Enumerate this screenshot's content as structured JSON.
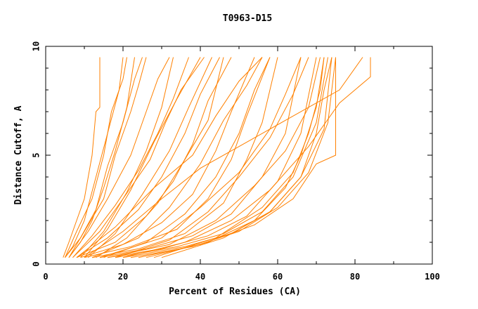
{
  "chart_data": {
    "type": "line",
    "title": "T0963-D15",
    "xlabel": "Percent of Residues (CA)",
    "ylabel": "Distance Cutoff, A",
    "xlim": [
      0,
      100
    ],
    "ylim": [
      0,
      10
    ],
    "x_ticks": [
      "0",
      "20",
      "40",
      "60",
      "80",
      "100"
    ],
    "y_ticks": [
      "0",
      "5",
      "10"
    ],
    "line_color": "#ff8000",
    "series_shape": "step-like cumulative curves, one per model (~70 models)",
    "series": [
      {
        "points": [
          [
            4.5,
            0.3
          ],
          [
            6,
            1
          ],
          [
            8,
            2
          ],
          [
            10,
            3
          ],
          [
            12,
            5
          ],
          [
            13,
            7
          ],
          [
            14,
            7.2
          ],
          [
            14,
            9.5
          ]
        ]
      },
      {
        "points": [
          [
            5,
            0.3
          ],
          [
            8,
            1.5
          ],
          [
            12,
            3
          ],
          [
            15,
            5
          ],
          [
            17,
            7
          ],
          [
            20,
            8.5
          ],
          [
            21,
            9.5
          ]
        ]
      },
      {
        "points": [
          [
            5,
            0.3
          ],
          [
            9,
            1.2
          ],
          [
            13,
            2.5
          ],
          [
            16,
            4.5
          ],
          [
            20,
            6.5
          ],
          [
            23,
            8.5
          ],
          [
            25,
            9.5
          ]
        ]
      },
      {
        "points": [
          [
            6,
            0.3
          ],
          [
            10,
            1.5
          ],
          [
            15,
            3
          ],
          [
            18,
            5
          ],
          [
            22,
            7
          ],
          [
            24,
            8.2
          ],
          [
            26,
            9.5
          ]
        ]
      },
      {
        "points": [
          [
            6,
            0.3
          ],
          [
            11,
            1.5
          ],
          [
            16,
            3
          ],
          [
            22,
            5
          ],
          [
            26,
            7
          ],
          [
            29,
            8.5
          ],
          [
            32,
            9.5
          ]
        ]
      },
      {
        "points": [
          [
            7,
            0.3
          ],
          [
            12,
            1.3
          ],
          [
            18,
            2.7
          ],
          [
            24,
            4.3
          ],
          [
            29,
            6
          ],
          [
            33,
            7.6
          ],
          [
            37,
            9.5
          ]
        ]
      },
      {
        "points": [
          [
            7,
            0.3
          ],
          [
            14,
            1.5
          ],
          [
            20,
            3
          ],
          [
            27,
            4.8
          ],
          [
            31,
            6.5
          ],
          [
            35,
            8
          ],
          [
            41,
            9.5
          ]
        ]
      },
      {
        "points": [
          [
            8,
            0.3
          ],
          [
            16,
            1.2
          ],
          [
            24,
            2.5
          ],
          [
            30,
            4
          ],
          [
            36,
            6
          ],
          [
            40,
            7.8
          ],
          [
            45,
            9.5
          ]
        ]
      },
      {
        "points": [
          [
            8,
            0.3
          ],
          [
            18,
            1
          ],
          [
            26,
            2.2
          ],
          [
            33,
            3.8
          ],
          [
            38,
            5.5
          ],
          [
            42,
            7.5
          ],
          [
            48,
            9.5
          ]
        ]
      },
      {
        "points": [
          [
            9,
            0.3
          ],
          [
            20,
            0.9
          ],
          [
            30,
            1.9
          ],
          [
            38,
            3.2
          ],
          [
            44,
            5.2
          ],
          [
            48,
            7
          ],
          [
            54,
            9.5
          ]
        ]
      },
      {
        "points": [
          [
            10,
            0.3
          ],
          [
            22,
            0.8
          ],
          [
            34,
            1.6
          ],
          [
            42,
            3
          ],
          [
            48,
            4.8
          ],
          [
            52,
            6.8
          ],
          [
            58,
            9.5
          ]
        ]
      },
      {
        "points": [
          [
            12,
            0.3
          ],
          [
            24,
            0.7
          ],
          [
            36,
            1.4
          ],
          [
            46,
            2.8
          ],
          [
            52,
            4.8
          ],
          [
            56,
            6.5
          ],
          [
            60,
            9.5
          ]
        ]
      },
      {
        "points": [
          [
            14,
            0.3
          ],
          [
            26,
            0.7
          ],
          [
            38,
            1.3
          ],
          [
            48,
            2.3
          ],
          [
            56,
            4
          ],
          [
            62,
            6
          ],
          [
            66,
            9.5
          ]
        ]
      },
      {
        "points": [
          [
            16,
            0.3
          ],
          [
            30,
            0.7
          ],
          [
            42,
            1.3
          ],
          [
            52,
            2.2
          ],
          [
            60,
            3.8
          ],
          [
            66,
            6
          ],
          [
            70,
            9.5
          ]
        ]
      },
      {
        "points": [
          [
            18,
            0.3
          ],
          [
            34,
            0.8
          ],
          [
            46,
            1.4
          ],
          [
            56,
            2.4
          ],
          [
            64,
            4
          ],
          [
            70,
            6.5
          ],
          [
            73,
            9.5
          ]
        ]
      },
      {
        "points": [
          [
            20,
            0.3
          ],
          [
            36,
            0.8
          ],
          [
            48,
            1.4
          ],
          [
            58,
            2.4
          ],
          [
            66,
            4
          ],
          [
            72,
            6.2
          ],
          [
            74,
            9.5
          ]
        ]
      },
      {
        "points": [
          [
            22,
            0.3
          ],
          [
            38,
            0.8
          ],
          [
            50,
            1.5
          ],
          [
            60,
            2.6
          ],
          [
            68,
            4.2
          ],
          [
            73,
            6.5
          ],
          [
            75,
            9.5
          ]
        ]
      },
      {
        "points": [
          [
            24,
            0.3
          ],
          [
            40,
            0.9
          ],
          [
            54,
            1.8
          ],
          [
            64,
            3
          ],
          [
            70,
            4.6
          ],
          [
            75,
            5
          ],
          [
            75,
            9.5
          ]
        ]
      },
      {
        "points": [
          [
            20,
            0.3
          ],
          [
            36,
            1
          ],
          [
            48,
            2
          ],
          [
            58,
            3.4
          ],
          [
            68,
            5.4
          ],
          [
            76,
            7.4
          ],
          [
            84,
            8.6
          ],
          [
            84,
            9.5
          ]
        ]
      },
      {
        "points": [
          [
            10,
            0.3
          ],
          [
            20,
            1.5
          ],
          [
            30,
            3
          ],
          [
            40,
            4.4
          ],
          [
            52,
            5.6
          ],
          [
            64,
            6.8
          ],
          [
            76,
            8
          ],
          [
            82,
            9.5
          ]
        ]
      },
      {
        "points": [
          [
            8,
            0.3
          ],
          [
            18,
            1.7
          ],
          [
            28,
            3.5
          ],
          [
            38,
            5
          ],
          [
            44,
            6.8
          ],
          [
            50,
            8.4
          ],
          [
            56,
            9.5
          ]
        ]
      },
      {
        "points": [
          [
            12,
            0.3
          ],
          [
            24,
            1.2
          ],
          [
            32,
            2.6
          ],
          [
            40,
            4.6
          ],
          [
            46,
            6.6
          ],
          [
            52,
            8.2
          ],
          [
            56,
            9.5
          ]
        ]
      },
      {
        "points": [
          [
            14,
            0.3
          ],
          [
            30,
            1.2
          ],
          [
            40,
            2.6
          ],
          [
            50,
            4.2
          ],
          [
            58,
            6.2
          ],
          [
            62,
            7.8
          ],
          [
            66,
            9.5
          ]
        ]
      },
      {
        "points": [
          [
            28,
            0.3
          ],
          [
            44,
            1.2
          ],
          [
            56,
            2.6
          ],
          [
            64,
            4.2
          ],
          [
            68,
            6
          ],
          [
            71,
            8
          ],
          [
            72,
            9.5
          ]
        ]
      },
      {
        "points": [
          [
            30,
            0.3
          ],
          [
            46,
            1.2
          ],
          [
            58,
            2.4
          ],
          [
            66,
            4
          ],
          [
            70,
            6
          ],
          [
            72,
            8
          ],
          [
            74,
            9.5
          ]
        ]
      },
      {
        "points": [
          [
            6,
            0.3
          ],
          [
            9,
            1
          ],
          [
            12,
            2
          ],
          [
            15,
            3.5
          ],
          [
            18,
            5.2
          ],
          [
            21,
            7.2
          ],
          [
            23,
            9.5
          ]
        ]
      },
      {
        "points": [
          [
            5,
            0.3
          ],
          [
            7,
            0.8
          ],
          [
            10,
            2
          ],
          [
            13,
            4
          ],
          [
            16,
            6
          ],
          [
            19,
            8
          ],
          [
            20,
            9.5
          ]
        ]
      },
      {
        "points": [
          [
            9,
            0.3
          ],
          [
            15,
            1.5
          ],
          [
            21,
            3.3
          ],
          [
            26,
            5.2
          ],
          [
            30,
            7.2
          ],
          [
            33,
            9.5
          ]
        ]
      },
      {
        "points": [
          [
            11,
            0.3
          ],
          [
            18,
            1.4
          ],
          [
            25,
            3.2
          ],
          [
            32,
            5.2
          ],
          [
            37,
            7.2
          ],
          [
            43,
            9.5
          ]
        ]
      },
      {
        "points": [
          [
            13,
            0.3
          ],
          [
            21,
            1.2
          ],
          [
            29,
            2.8
          ],
          [
            36,
            4.8
          ],
          [
            42,
            6.6
          ],
          [
            46,
            9.5
          ]
        ]
      },
      {
        "points": [
          [
            15,
            0.3
          ],
          [
            26,
            1
          ],
          [
            36,
            2.3
          ],
          [
            44,
            4
          ],
          [
            50,
            6
          ],
          [
            54,
            8
          ],
          [
            58,
            9.5
          ]
        ]
      },
      {
        "points": [
          [
            26,
            0.3
          ],
          [
            42,
            1
          ],
          [
            54,
            2
          ],
          [
            62,
            3.5
          ],
          [
            66,
            5
          ],
          [
            70,
            7.2
          ],
          [
            72,
            9.5
          ]
        ]
      },
      {
        "points": [
          [
            16,
            0.3
          ],
          [
            32,
            0.9
          ],
          [
            44,
            2
          ],
          [
            54,
            3.6
          ],
          [
            62,
            5.2
          ],
          [
            68,
            7.2
          ],
          [
            71,
            9.5
          ]
        ]
      },
      {
        "points": [
          [
            10,
            0.3
          ],
          [
            16,
            1.6
          ],
          [
            22,
            3.4
          ],
          [
            28,
            5.6
          ],
          [
            34,
            7.6
          ],
          [
            40,
            9.5
          ]
        ]
      },
      {
        "points": [
          [
            18,
            0.3
          ],
          [
            32,
            1.1
          ],
          [
            42,
            2.4
          ],
          [
            50,
            4
          ],
          [
            58,
            5.8
          ],
          [
            64,
            7.8
          ],
          [
            68,
            9.5
          ]
        ]
      }
    ]
  }
}
